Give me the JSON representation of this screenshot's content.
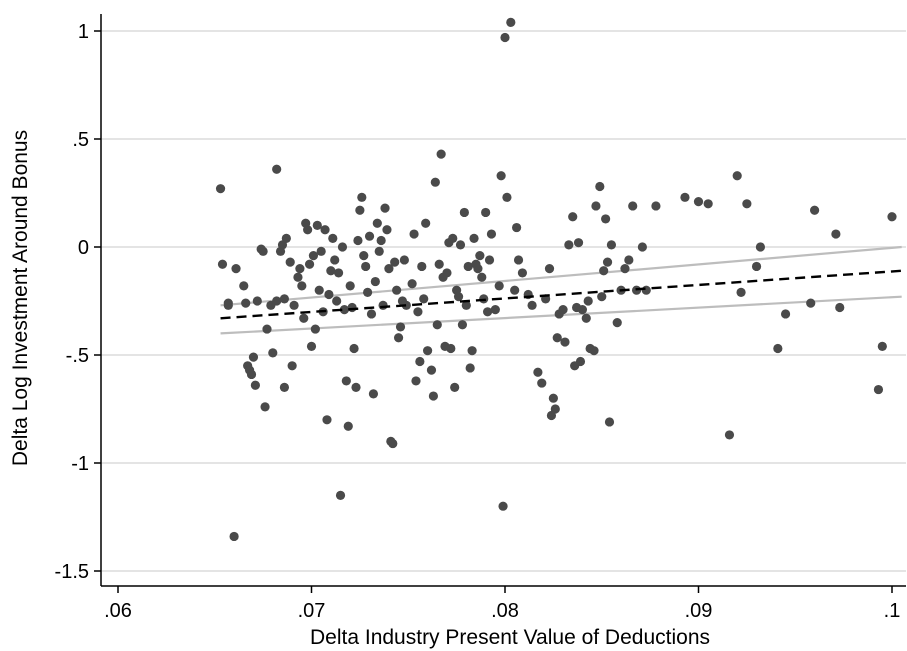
{
  "chart_data": {
    "type": "scatter",
    "title": "",
    "xlabel": "Delta Industry Present Value of Deductions",
    "ylabel": "Delta Log Investment Around Bonus",
    "xlim": [
      0.06,
      0.1
    ],
    "ylim": [
      -1.5,
      1
    ],
    "x_ticks": [
      0.06,
      0.07,
      0.08,
      0.09,
      0.1
    ],
    "x_tick_labels": [
      ".06",
      ".07",
      ".08",
      ".09",
      ".1"
    ],
    "y_ticks": [
      -1.5,
      -1,
      -0.5,
      0,
      0.5,
      1
    ],
    "y_tick_labels": [
      "-1.5",
      "-1",
      "-.5",
      "0",
      ".5",
      "1"
    ],
    "grid": "horizontal",
    "legend": "none",
    "colors": {
      "points": "#4a4a4a",
      "fit_line": "#000000",
      "ci_lines": "#bdbdbd",
      "grid": "#dcdcdc"
    },
    "points": [
      [
        0.0653,
        0.27
      ],
      [
        0.0654,
        -0.08
      ],
      [
        0.0657,
        -0.26
      ],
      [
        0.0657,
        -0.27
      ],
      [
        0.0661,
        -0.1
      ],
      [
        0.066,
        -1.34
      ],
      [
        0.0665,
        -0.18
      ],
      [
        0.0666,
        -0.26
      ],
      [
        0.0667,
        -0.55
      ],
      [
        0.0668,
        -0.57
      ],
      [
        0.0669,
        -0.59
      ],
      [
        0.067,
        -0.51
      ],
      [
        0.0671,
        -0.64
      ],
      [
        0.0672,
        -0.25
      ],
      [
        0.0674,
        -0.01
      ],
      [
        0.0675,
        -0.02
      ],
      [
        0.0676,
        -0.74
      ],
      [
        0.0677,
        -0.38
      ],
      [
        0.0679,
        -0.27
      ],
      [
        0.068,
        -0.49
      ],
      [
        0.0682,
        -0.25
      ],
      [
        0.0682,
        0.36
      ],
      [
        0.0684,
        -0.02
      ],
      [
        0.0685,
        0.01
      ],
      [
        0.0686,
        -0.24
      ],
      [
        0.0686,
        -0.65
      ],
      [
        0.0687,
        0.04
      ],
      [
        0.0689,
        -0.07
      ],
      [
        0.069,
        -0.55
      ],
      [
        0.0691,
        -0.27
      ],
      [
        0.0693,
        -0.14
      ],
      [
        0.0694,
        -0.1
      ],
      [
        0.0695,
        -0.18
      ],
      [
        0.0696,
        -0.33
      ],
      [
        0.0697,
        0.11
      ],
      [
        0.0698,
        0.08
      ],
      [
        0.0699,
        -0.08
      ],
      [
        0.07,
        -0.46
      ],
      [
        0.0701,
        -0.04
      ],
      [
        0.0702,
        -0.38
      ],
      [
        0.0703,
        0.1
      ],
      [
        0.0704,
        -0.2
      ],
      [
        0.0705,
        -0.02
      ],
      [
        0.0706,
        -0.3
      ],
      [
        0.0707,
        0.08
      ],
      [
        0.0708,
        -0.8
      ],
      [
        0.0709,
        -0.22
      ],
      [
        0.071,
        -0.11
      ],
      [
        0.0711,
        0.04
      ],
      [
        0.0712,
        -0.06
      ],
      [
        0.0713,
        -0.25
      ],
      [
        0.0714,
        -0.12
      ],
      [
        0.0715,
        -1.15
      ],
      [
        0.0716,
        0.0
      ],
      [
        0.0717,
        -0.29
      ],
      [
        0.0718,
        -0.62
      ],
      [
        0.0719,
        -0.83
      ],
      [
        0.072,
        -0.18
      ],
      [
        0.0721,
        -0.28
      ],
      [
        0.0722,
        -0.47
      ],
      [
        0.0723,
        -0.65
      ],
      [
        0.0724,
        0.03
      ],
      [
        0.0725,
        0.17
      ],
      [
        0.0726,
        0.23
      ],
      [
        0.0727,
        -0.04
      ],
      [
        0.0728,
        -0.09
      ],
      [
        0.0729,
        -0.21
      ],
      [
        0.073,
        0.05
      ],
      [
        0.0731,
        -0.31
      ],
      [
        0.0732,
        -0.68
      ],
      [
        0.0733,
        -0.16
      ],
      [
        0.0734,
        0.11
      ],
      [
        0.0735,
        -0.02
      ],
      [
        0.0736,
        0.03
      ],
      [
        0.0737,
        -0.27
      ],
      [
        0.0738,
        0.18
      ],
      [
        0.0739,
        0.08
      ],
      [
        0.074,
        -0.1
      ],
      [
        0.0741,
        -0.9
      ],
      [
        0.0742,
        -0.91
      ],
      [
        0.0743,
        -0.07
      ],
      [
        0.0744,
        -0.2
      ],
      [
        0.0745,
        -0.42
      ],
      [
        0.0746,
        -0.37
      ],
      [
        0.0747,
        -0.25
      ],
      [
        0.0748,
        -0.06
      ],
      [
        0.0749,
        -0.27
      ],
      [
        0.0752,
        -0.17
      ],
      [
        0.0753,
        0.06
      ],
      [
        0.0754,
        -0.62
      ],
      [
        0.0755,
        -0.3
      ],
      [
        0.0756,
        -0.53
      ],
      [
        0.0757,
        -0.09
      ],
      [
        0.0758,
        -0.24
      ],
      [
        0.0759,
        0.11
      ],
      [
        0.076,
        -0.48
      ],
      [
        0.0762,
        -0.57
      ],
      [
        0.0763,
        -0.69
      ],
      [
        0.0764,
        0.3
      ],
      [
        0.0765,
        -0.36
      ],
      [
        0.0766,
        -0.08
      ],
      [
        0.0767,
        0.43
      ],
      [
        0.0768,
        -0.14
      ],
      [
        0.0769,
        -0.46
      ],
      [
        0.077,
        -0.12
      ],
      [
        0.0771,
        0.02
      ],
      [
        0.0772,
        -0.47
      ],
      [
        0.0773,
        0.04
      ],
      [
        0.0774,
        -0.65
      ],
      [
        0.0775,
        -0.2
      ],
      [
        0.0776,
        -0.23
      ],
      [
        0.0777,
        0.01
      ],
      [
        0.0778,
        -0.36
      ],
      [
        0.0779,
        0.16
      ],
      [
        0.078,
        -0.27
      ],
      [
        0.0781,
        -0.09
      ],
      [
        0.0782,
        -0.56
      ],
      [
        0.0783,
        -0.48
      ],
      [
        0.0784,
        0.04
      ],
      [
        0.0785,
        -0.08
      ],
      [
        0.0786,
        -0.1
      ],
      [
        0.0787,
        -0.04
      ],
      [
        0.0788,
        -0.14
      ],
      [
        0.0789,
        -0.24
      ],
      [
        0.079,
        0.16
      ],
      [
        0.0791,
        -0.3
      ],
      [
        0.0792,
        -0.06
      ],
      [
        0.0793,
        0.06
      ],
      [
        0.0795,
        -0.29
      ],
      [
        0.0797,
        -0.18
      ],
      [
        0.0798,
        0.33
      ],
      [
        0.0799,
        -1.2
      ],
      [
        0.08,
        0.97
      ],
      [
        0.0801,
        0.23
      ],
      [
        0.0803,
        1.04
      ],
      [
        0.0805,
        -0.2
      ],
      [
        0.0806,
        0.09
      ],
      [
        0.0807,
        -0.06
      ],
      [
        0.0809,
        -0.12
      ],
      [
        0.0812,
        -0.22
      ],
      [
        0.0814,
        -0.27
      ],
      [
        0.0817,
        -0.58
      ],
      [
        0.0819,
        -0.63
      ],
      [
        0.0821,
        -0.24
      ],
      [
        0.0823,
        -0.1
      ],
      [
        0.0824,
        -0.78
      ],
      [
        0.0825,
        -0.7
      ],
      [
        0.0826,
        -0.75
      ],
      [
        0.0827,
        -0.42
      ],
      [
        0.0828,
        -0.31
      ],
      [
        0.083,
        -0.29
      ],
      [
        0.0831,
        -0.44
      ],
      [
        0.0833,
        0.01
      ],
      [
        0.0835,
        0.14
      ],
      [
        0.0836,
        -0.55
      ],
      [
        0.0837,
        -0.28
      ],
      [
        0.0838,
        0.02
      ],
      [
        0.0839,
        -0.53
      ],
      [
        0.084,
        -0.29
      ],
      [
        0.0842,
        -0.33
      ],
      [
        0.0843,
        -0.25
      ],
      [
        0.0844,
        -0.47
      ],
      [
        0.0846,
        -0.48
      ],
      [
        0.0847,
        0.19
      ],
      [
        0.0849,
        0.28
      ],
      [
        0.085,
        -0.23
      ],
      [
        0.0851,
        -0.11
      ],
      [
        0.0852,
        0.13
      ],
      [
        0.0853,
        -0.07
      ],
      [
        0.0854,
        -0.81
      ],
      [
        0.0855,
        0.01
      ],
      [
        0.0858,
        -0.35
      ],
      [
        0.086,
        -0.2
      ],
      [
        0.0862,
        -0.1
      ],
      [
        0.0864,
        -0.06
      ],
      [
        0.0866,
        0.19
      ],
      [
        0.0868,
        -0.2
      ],
      [
        0.0871,
        0.0
      ],
      [
        0.0873,
        -0.2
      ],
      [
        0.0878,
        0.19
      ],
      [
        0.0893,
        0.23
      ],
      [
        0.09,
        0.21
      ],
      [
        0.0905,
        0.2
      ],
      [
        0.0916,
        -0.87
      ],
      [
        0.092,
        0.33
      ],
      [
        0.0922,
        -0.21
      ],
      [
        0.0925,
        0.2
      ],
      [
        0.093,
        -0.09
      ],
      [
        0.0932,
        0.0
      ],
      [
        0.0941,
        -0.47
      ],
      [
        0.0945,
        -0.31
      ],
      [
        0.0958,
        -0.26
      ],
      [
        0.096,
        0.17
      ],
      [
        0.0971,
        0.06
      ],
      [
        0.0973,
        -0.28
      ],
      [
        0.0993,
        -0.66
      ],
      [
        0.0995,
        -0.46
      ],
      [
        0.1,
        0.14
      ]
    ],
    "fit_line": {
      "style": "dashed",
      "x": [
        0.0653,
        0.1005
      ],
      "y": [
        -0.33,
        -0.11
      ]
    },
    "ci_upper": {
      "x": [
        0.0653,
        0.1005
      ],
      "y": [
        -0.27,
        0.0
      ]
    },
    "ci_lower": {
      "x": [
        0.0653,
        0.1005
      ],
      "y": [
        -0.4,
        -0.23
      ]
    }
  }
}
